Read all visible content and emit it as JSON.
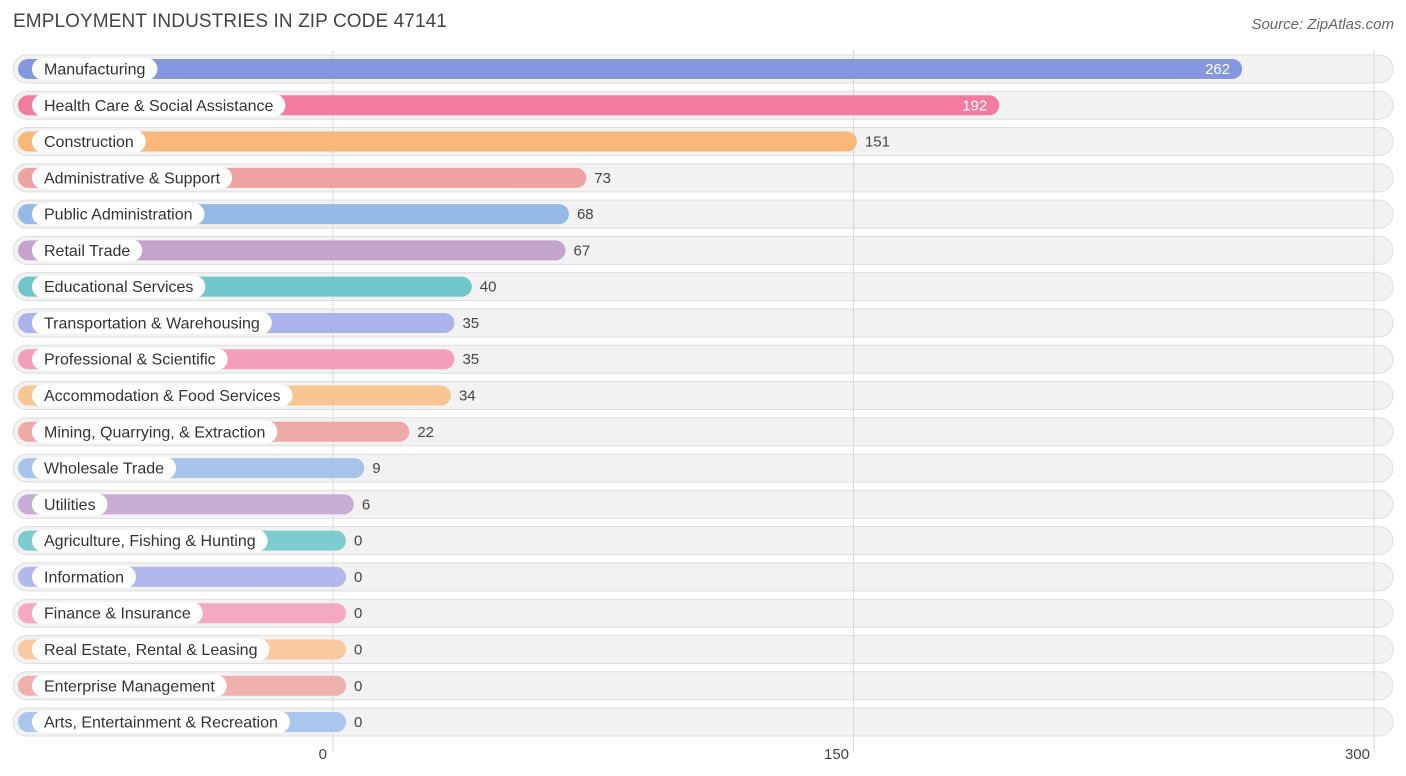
{
  "header": {
    "title": "EMPLOYMENT INDUSTRIES IN ZIP CODE 47141",
    "source": "Source: ZipAtlas.com"
  },
  "chart_data": {
    "type": "bar",
    "orientation": "horizontal",
    "title": "EMPLOYMENT INDUSTRIES IN ZIP CODE 47141",
    "xlabel": "",
    "ylabel": "",
    "xlim": [
      0,
      300
    ],
    "ticks": [
      0,
      150,
      300
    ],
    "grid": true,
    "categories": [
      "Manufacturing",
      "Health Care & Social Assistance",
      "Construction",
      "Administrative & Support",
      "Public Administration",
      "Retail Trade",
      "Educational Services",
      "Transportation & Warehousing",
      "Professional & Scientific",
      "Accommodation & Food Services",
      "Mining, Quarrying, & Extraction",
      "Wholesale Trade",
      "Utilities",
      "Agriculture, Fishing & Hunting",
      "Information",
      "Finance & Insurance",
      "Real Estate, Rental & Leasing",
      "Enterprise Management",
      "Arts, Entertainment & Recreation"
    ],
    "values": [
      262,
      192,
      151,
      73,
      68,
      67,
      40,
      35,
      35,
      34,
      22,
      9,
      6,
      0,
      0,
      0,
      0,
      0,
      0
    ],
    "colors": [
      "#8597de",
      "#f47ba0",
      "#f9b87a",
      "#eda39f",
      "#95b9e6",
      "#c4a3cb",
      "#6fc6cb",
      "#aab4ea",
      "#f59fbd",
      "#f9c592",
      "#eeaaa6",
      "#a6c4ea",
      "#c9acd3",
      "#7dcdd0",
      "#b1b9ec",
      "#f6a8c3",
      "#f9c99f",
      "#f0b0ae",
      "#a9c6ee"
    ]
  }
}
